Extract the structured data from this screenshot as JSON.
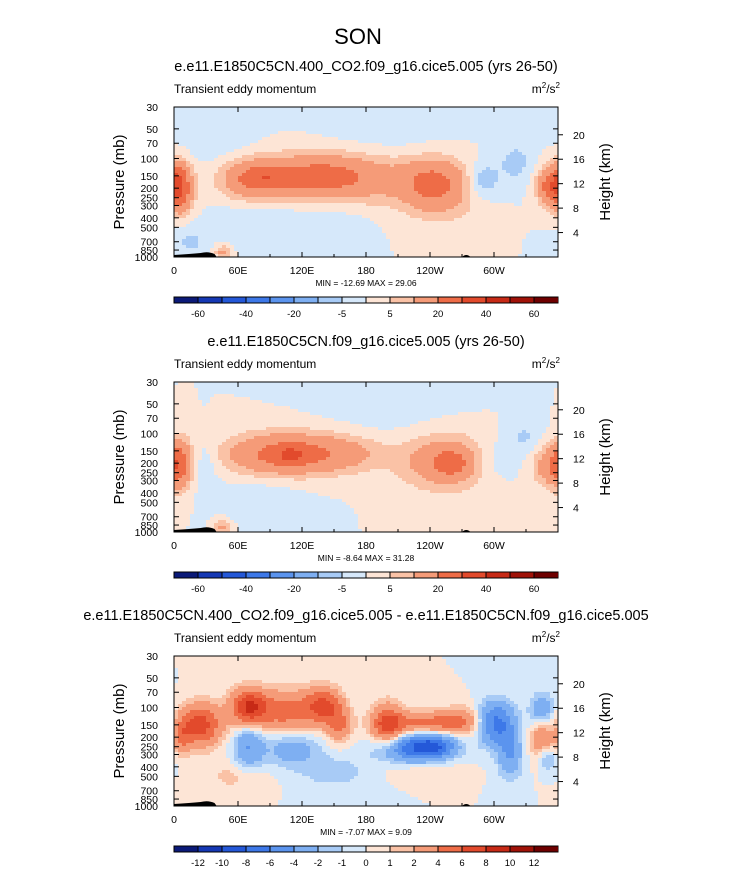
{
  "figure": {
    "title": "SON",
    "domain": "Chart"
  },
  "chart_data": [
    {
      "type": "heatmap",
      "title": "e.e11.E1850C5CN.400_CO2.f09_g16.cice5.005 (yrs 26-50)",
      "subtitle_left": "Transient eddy momentum",
      "units": "m2/s2",
      "units_base": "m",
      "units_mid": "/s",
      "units_exp": "2",
      "xlabel": "",
      "ylabel": "Pressure (mb)",
      "ylabel_right": "Height (km)",
      "x_ticks": [
        "0",
        "60E",
        "120E",
        "180",
        "120W",
        "60W"
      ],
      "x_tick_lon": [
        0,
        60,
        120,
        180,
        240,
        300
      ],
      "xlim": [
        0,
        360
      ],
      "y_ticks": [
        "30",
        "50",
        "70",
        "100",
        "150",
        "200",
        "250",
        "300",
        "400",
        "500",
        "700",
        "850",
        "1000"
      ],
      "y_tick_p": [
        30,
        50,
        70,
        100,
        150,
        200,
        250,
        300,
        400,
        500,
        700,
        850,
        1000
      ],
      "ylim": [
        1000,
        30
      ],
      "height_ticks": [
        "4",
        "8",
        "12",
        "16",
        "20"
      ],
      "height_km": [
        4,
        8,
        12,
        16,
        20
      ],
      "min_max_text": "MIN = -12.69   MAX =  29.06",
      "min": -12.69,
      "max": 29.06,
      "colorbar_labels": [
        "-60",
        "-40",
        "-20",
        "-5",
        "5",
        "20",
        "40",
        "60"
      ],
      "colorbar_levels": [
        -70,
        -60,
        -50,
        -40,
        -30,
        -20,
        -10,
        -5,
        0,
        5,
        10,
        20,
        30,
        40,
        50,
        60,
        70
      ],
      "features": [
        {
          "lon": 5,
          "p": 205,
          "dlon": 9,
          "dlnp": 0.4,
          "v": 28
        },
        {
          "lon": 3,
          "p": 150,
          "dlon": 7,
          "dlnp": 0.3,
          "v": 8
        },
        {
          "lon": 70,
          "p": 165,
          "dlon": 18,
          "dlnp": 0.32,
          "v": 14
        },
        {
          "lon": 115,
          "p": 155,
          "dlon": 40,
          "dlnp": 0.38,
          "v": 18
        },
        {
          "lon": 90,
          "p": 150,
          "dlon": 14,
          "dlnp": 0.18,
          "v": 7
        },
        {
          "lon": 150,
          "p": 150,
          "dlon": 28,
          "dlnp": 0.35,
          "v": 11
        },
        {
          "lon": 195,
          "p": 165,
          "dlon": 30,
          "dlnp": 0.45,
          "v": 8
        },
        {
          "lon": 245,
          "p": 175,
          "dlon": 22,
          "dlnp": 0.4,
          "v": 22
        },
        {
          "lon": 250,
          "p": 320,
          "dlon": 25,
          "dlnp": 0.35,
          "v": 5
        },
        {
          "lon": 350,
          "p": 190,
          "dlon": 8,
          "dlnp": 0.3,
          "v": 18
        },
        {
          "lon": 290,
          "p": 165,
          "dlon": 10,
          "dlnp": 0.28,
          "v": -10
        },
        {
          "lon": 320,
          "p": 110,
          "dlon": 12,
          "dlnp": 0.35,
          "v": -7
        },
        {
          "lon": 80,
          "p": 400,
          "dlon": 30,
          "dlnp": 0.35,
          "v": -4
        },
        {
          "lon": 150,
          "p": 450,
          "dlon": 25,
          "dlnp": 0.3,
          "v": -3
        },
        {
          "lon": 40,
          "p": 60,
          "dlon": 25,
          "dlnp": 0.5,
          "v": -4
        },
        {
          "lon": 200,
          "p": 50,
          "dlon": 40,
          "dlnp": 0.5,
          "v": -3
        },
        {
          "lon": 45,
          "p": 900,
          "dlon": 5,
          "dlnp": 0.12,
          "v": 12
        },
        {
          "lon": 15,
          "p": 700,
          "dlon": 12,
          "dlnp": 0.3,
          "v": -6
        }
      ]
    },
    {
      "type": "heatmap",
      "title": "e.e11.E1850C5CN.f09_g16.cice5.005 (yrs 26-50)",
      "subtitle_left": "Transient eddy momentum",
      "units": "m2/s2",
      "units_base": "m",
      "units_mid": "/s",
      "units_exp": "2",
      "xlabel": "",
      "ylabel": "Pressure (mb)",
      "ylabel_right": "Height (km)",
      "x_ticks": [
        "0",
        "60E",
        "120E",
        "180",
        "120W",
        "60W"
      ],
      "x_tick_lon": [
        0,
        60,
        120,
        180,
        240,
        300
      ],
      "xlim": [
        0,
        360
      ],
      "y_ticks": [
        "30",
        "50",
        "70",
        "100",
        "150",
        "200",
        "250",
        "300",
        "400",
        "500",
        "700",
        "850",
        "1000"
      ],
      "y_tick_p": [
        30,
        50,
        70,
        100,
        150,
        200,
        250,
        300,
        400,
        500,
        700,
        850,
        1000
      ],
      "ylim": [
        1000,
        30
      ],
      "height_ticks": [
        "4",
        "8",
        "12",
        "16",
        "20"
      ],
      "height_km": [
        4,
        8,
        12,
        16,
        20
      ],
      "min_max_text": "MIN = -8.64   MAX =  31.28",
      "min": -8.64,
      "max": 31.28,
      "colorbar_labels": [
        "-60",
        "-40",
        "-20",
        "-5",
        "5",
        "20",
        "40",
        "60"
      ],
      "colorbar_levels": [
        -70,
        -60,
        -50,
        -40,
        -30,
        -20,
        -10,
        -5,
        0,
        5,
        10,
        20,
        30,
        40,
        50,
        60,
        70
      ],
      "features": [
        {
          "lon": 5,
          "p": 205,
          "dlon": 8,
          "dlnp": 0.4,
          "v": 25
        },
        {
          "lon": 90,
          "p": 165,
          "dlon": 35,
          "dlnp": 0.35,
          "v": 14
        },
        {
          "lon": 120,
          "p": 160,
          "dlon": 35,
          "dlnp": 0.35,
          "v": 14
        },
        {
          "lon": 110,
          "p": 165,
          "dlon": 10,
          "dlnp": 0.15,
          "v": 8
        },
        {
          "lon": 165,
          "p": 160,
          "dlon": 25,
          "dlnp": 0.3,
          "v": 8
        },
        {
          "lon": 255,
          "p": 195,
          "dlon": 30,
          "dlnp": 0.45,
          "v": 18
        },
        {
          "lon": 260,
          "p": 200,
          "dlon": 10,
          "dlnp": 0.2,
          "v": 12
        },
        {
          "lon": 350,
          "p": 210,
          "dlon": 10,
          "dlnp": 0.35,
          "v": 14
        },
        {
          "lon": 300,
          "p": 190,
          "dlon": 15,
          "dlnp": 0.35,
          "v": -6
        },
        {
          "lon": 330,
          "p": 110,
          "dlon": 12,
          "dlnp": 0.3,
          "v": -6
        },
        {
          "lon": 30,
          "p": 200,
          "dlon": 8,
          "dlnp": 0.4,
          "v": -5
        },
        {
          "lon": 80,
          "p": 400,
          "dlon": 30,
          "dlnp": 0.35,
          "v": -3
        },
        {
          "lon": 45,
          "p": 900,
          "dlon": 5,
          "dlnp": 0.12,
          "v": 12
        },
        {
          "lon": 200,
          "p": 50,
          "dlon": 40,
          "dlnp": 0.5,
          "v": -3
        }
      ]
    },
    {
      "type": "heatmap",
      "title": "e.e11.E1850C5CN.400_CO2.f09_g16.cice5.005 - e.e11.E1850C5CN.f09_g16.cice5.005",
      "subtitle_left": "Transient eddy momentum",
      "units": "m2/s2",
      "units_base": "m",
      "units_mid": "/s",
      "units_exp": "2",
      "xlabel": "",
      "ylabel": "Pressure (mb)",
      "ylabel_right": "Height (km)",
      "x_ticks": [
        "0",
        "60E",
        "120E",
        "180",
        "120W",
        "60W"
      ],
      "x_tick_lon": [
        0,
        60,
        120,
        180,
        240,
        300
      ],
      "xlim": [
        0,
        360
      ],
      "y_ticks": [
        "30",
        "50",
        "70",
        "100",
        "150",
        "200",
        "250",
        "300",
        "400",
        "500",
        "700",
        "850",
        "1000"
      ],
      "y_tick_p": [
        30,
        50,
        70,
        100,
        150,
        200,
        250,
        300,
        400,
        500,
        700,
        850,
        1000
      ],
      "ylim": [
        1000,
        30
      ],
      "height_ticks": [
        "4",
        "8",
        "12",
        "16",
        "20"
      ],
      "height_km": [
        4,
        8,
        12,
        16,
        20
      ],
      "min_max_text": "MIN = -7.07   MAX =  9.09",
      "min": -7.07,
      "max": 9.09,
      "colorbar_labels": [
        "-12",
        "-10",
        "-8",
        "-6",
        "-4",
        "-2",
        "-1",
        "0",
        "1",
        "2",
        "4",
        "6",
        "8",
        "10",
        "12"
      ],
      "colorbar_levels": [
        -14,
        -12,
        -10,
        -8,
        -6,
        -4,
        -2,
        -1,
        0,
        1,
        2,
        4,
        6,
        8,
        10,
        12,
        14
      ],
      "features": [
        {
          "lon": 25,
          "p": 150,
          "dlon": 14,
          "dlnp": 0.35,
          "v": 7
        },
        {
          "lon": 8,
          "p": 200,
          "dlon": 6,
          "dlnp": 0.3,
          "v": 3
        },
        {
          "lon": 70,
          "p": 100,
          "dlon": 12,
          "dlnp": 0.3,
          "v": 8
        },
        {
          "lon": 105,
          "p": 110,
          "dlon": 20,
          "dlnp": 0.35,
          "v": 5
        },
        {
          "lon": 140,
          "p": 95,
          "dlon": 12,
          "dlnp": 0.3,
          "v": 6
        },
        {
          "lon": 155,
          "p": 150,
          "dlon": 8,
          "dlnp": 0.3,
          "v": 4
        },
        {
          "lon": 200,
          "p": 150,
          "dlon": 10,
          "dlnp": 0.35,
          "v": 6
        },
        {
          "lon": 240,
          "p": 145,
          "dlon": 30,
          "dlnp": 0.2,
          "v": 5
        },
        {
          "lon": 345,
          "p": 200,
          "dlon": 8,
          "dlnp": 0.35,
          "v": 4
        },
        {
          "lon": 70,
          "p": 250,
          "dlon": 10,
          "dlnp": 0.4,
          "v": -4
        },
        {
          "lon": 110,
          "p": 260,
          "dlon": 18,
          "dlnp": 0.3,
          "v": -3
        },
        {
          "lon": 225,
          "p": 265,
          "dlon": 22,
          "dlnp": 0.25,
          "v": -7
        },
        {
          "lon": 245,
          "p": 240,
          "dlon": 14,
          "dlnp": 0.2,
          "v": -5
        },
        {
          "lon": 302,
          "p": 145,
          "dlon": 12,
          "dlnp": 0.35,
          "v": -7
        },
        {
          "lon": 315,
          "p": 300,
          "dlon": 8,
          "dlnp": 0.4,
          "v": -4
        },
        {
          "lon": 345,
          "p": 110,
          "dlon": 8,
          "dlnp": 0.3,
          "v": -4
        },
        {
          "lon": 350,
          "p": 330,
          "dlon": 6,
          "dlnp": 0.2,
          "v": -3
        },
        {
          "lon": 270,
          "p": 130,
          "dlon": 12,
          "dlnp": 0.25,
          "v": 2
        },
        {
          "lon": 150,
          "p": 450,
          "dlon": 25,
          "dlnp": 0.3,
          "v": -1.5
        },
        {
          "lon": 230,
          "p": 400,
          "dlon": 25,
          "dlnp": 0.2,
          "v": 1.5
        },
        {
          "lon": 60,
          "p": 500,
          "dlon": 20,
          "dlnp": 0.25,
          "v": 1.5
        }
      ]
    }
  ],
  "colors": {
    "palette": [
      "#0b1a78",
      "#1538b4",
      "#2458d8",
      "#3d78e8",
      "#5b94ee",
      "#7eaff2",
      "#a8cbf6",
      "#d6e8fa",
      "#fde5d6",
      "#fac2a6",
      "#f59b78",
      "#ee6c47",
      "#e24a2c",
      "#c72a16",
      "#a01208",
      "#6e0000"
    ],
    "topography": "#000000",
    "frame": "#000000"
  }
}
